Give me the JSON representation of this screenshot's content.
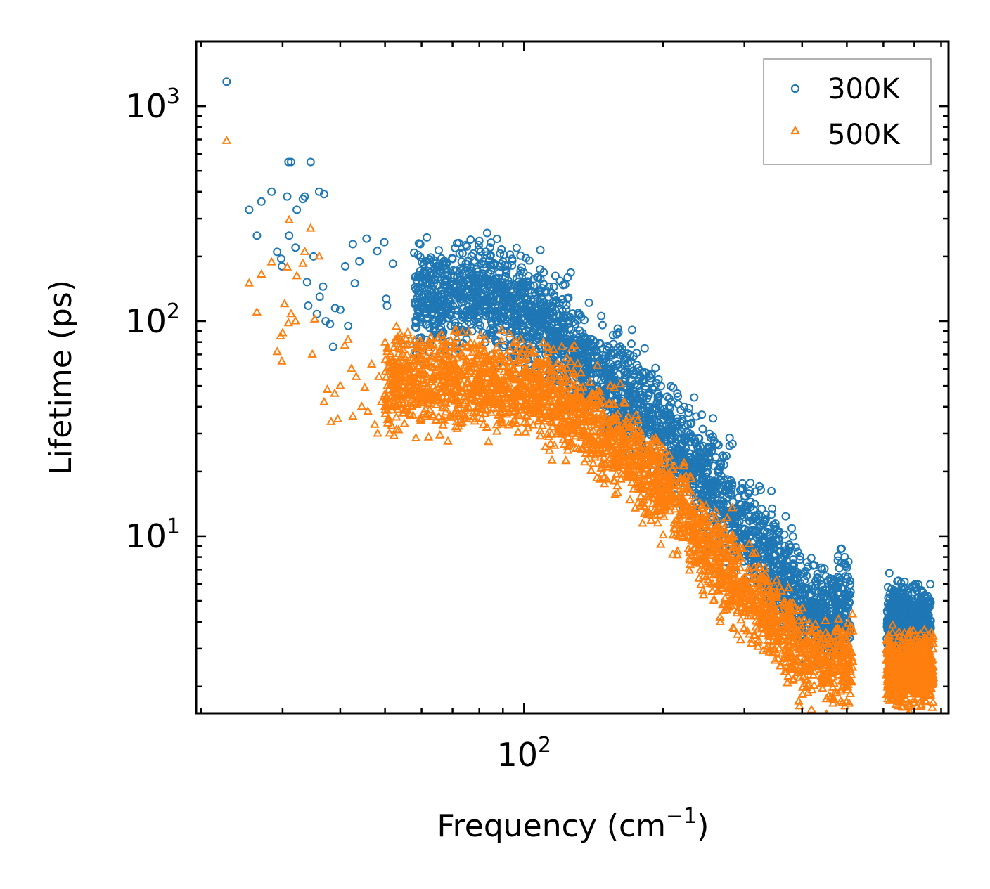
{
  "chart_data": {
    "type": "scatter",
    "scale": {
      "x": "log",
      "y": "log"
    },
    "xlim": [
      19.5,
      830
    ],
    "ylim": [
      1.5,
      2000
    ],
    "xlabel": {
      "main": "Frequency (cm",
      "sup": "−1",
      "end": ")"
    },
    "ylabel": "Lifetime (ps)",
    "x_ticks": [
      {
        "value": 100,
        "base": "10",
        "exp": "2"
      }
    ],
    "y_ticks": [
      {
        "value": 10,
        "base": "10",
        "exp": "1"
      },
      {
        "value": 100,
        "base": "10",
        "exp": "2"
      },
      {
        "value": 1000,
        "base": "10",
        "exp": "3"
      }
    ],
    "legend": {
      "position": "top-right"
    },
    "series": [
      {
        "name": "300K",
        "marker": "circle",
        "color": "#1f77b4",
        "points": [
          [
            22.7,
            1300
          ],
          [
            25.4,
            330
          ],
          [
            26.4,
            250
          ],
          [
            27.0,
            360
          ],
          [
            28.4,
            400
          ],
          [
            30.7,
            380
          ],
          [
            30.9,
            550
          ],
          [
            31.0,
            250
          ],
          [
            31.3,
            550
          ],
          [
            32.0,
            220
          ],
          [
            32.2,
            330
          ],
          [
            33.2,
            370
          ],
          [
            33.5,
            380
          ],
          [
            34.5,
            550
          ],
          [
            36.0,
            400
          ],
          [
            36.9,
            390
          ],
          [
            29.2,
            210
          ],
          [
            29.8,
            195
          ],
          [
            29.9,
            180
          ],
          [
            33.9,
            152
          ],
          [
            34.1,
            118
          ],
          [
            35.0,
            200
          ],
          [
            35.6,
            108
          ],
          [
            36.1,
            130
          ],
          [
            36.7,
            145
          ],
          [
            37.2,
            100
          ],
          [
            38.0,
            97
          ],
          [
            38.6,
            76
          ],
          [
            39.0,
            115
          ],
          [
            40.0,
            113
          ],
          [
            41.0,
            180
          ],
          [
            41.6,
            95
          ],
          [
            42.6,
            228
          ],
          [
            43.0,
            150
          ],
          [
            44.0,
            190
          ],
          [
            45.6,
            242
          ],
          [
            48.1,
            212
          ],
          [
            49.8,
            233
          ],
          [
            50.3,
            127
          ],
          [
            50.5,
            118
          ],
          [
            52.0,
            185
          ],
          [
            55.2,
            82
          ],
          [
            57.8,
            208
          ],
          [
            59.6,
            228
          ],
          [
            60.0,
            130
          ]
        ],
        "trend": [
          [
            50,
            120
          ],
          [
            80,
            135
          ],
          [
            100,
            110
          ],
          [
            120,
            85
          ],
          [
            150,
            52
          ],
          [
            180,
            40
          ],
          [
            220,
            25
          ],
          [
            260,
            16
          ],
          [
            300,
            11
          ],
          [
            350,
            7.5
          ],
          [
            400,
            5.0
          ],
          [
            450,
            4.3
          ],
          [
            500,
            4.9
          ],
          [
            650,
            4.0
          ],
          [
            750,
            4.2
          ]
        ],
        "trend_spread": 0.33,
        "trend_density": 2800,
        "trend_xmin": 58,
        "trend_xmax": 510,
        "clusters": [
          {
            "x": [
              610,
              760
            ],
            "y_center": 4.0,
            "spread": 0.22,
            "n": 700
          }
        ]
      },
      {
        "name": "500K",
        "marker": "triangle",
        "color": "#ff7f0e",
        "points": [
          [
            22.7,
            690
          ],
          [
            25.4,
            150
          ],
          [
            26.4,
            110
          ],
          [
            27.0,
            165
          ],
          [
            28.4,
            188
          ],
          [
            29.2,
            72
          ],
          [
            29.9,
            65
          ],
          [
            30.7,
            178
          ],
          [
            30.9,
            98
          ],
          [
            31.0,
            295
          ],
          [
            31.3,
            108
          ],
          [
            32.2,
            162
          ],
          [
            32.0,
            100
          ],
          [
            33.2,
            185
          ],
          [
            33.5,
            210
          ],
          [
            34.5,
            270
          ],
          [
            29.7,
            85
          ],
          [
            30.0,
            88
          ],
          [
            30.3,
            120
          ],
          [
            34.8,
            70
          ],
          [
            35.2,
            102
          ],
          [
            36.0,
            200
          ],
          [
            36.9,
            42
          ],
          [
            37.5,
            48
          ],
          [
            38.2,
            34
          ],
          [
            38.9,
            46
          ],
          [
            39.5,
            35
          ],
          [
            40.0,
            50
          ],
          [
            40.9,
            77
          ],
          [
            41.6,
            82
          ],
          [
            42.3,
            60
          ],
          [
            42.6,
            36
          ],
          [
            43.3,
            55
          ],
          [
            44.5,
            40
          ],
          [
            45.2,
            49
          ],
          [
            45.9,
            38
          ],
          [
            46.8,
            63
          ],
          [
            47.5,
            33
          ],
          [
            48.2,
            30
          ],
          [
            48.5,
            55
          ],
          [
            49.1,
            42
          ],
          [
            50.0,
            40
          ]
        ],
        "trend": [
          [
            50,
            52
          ],
          [
            70,
            52
          ],
          [
            90,
            50
          ],
          [
            110,
            48
          ],
          [
            130,
            38
          ],
          [
            160,
            27
          ],
          [
            190,
            19
          ],
          [
            220,
            13
          ],
          [
            260,
            8
          ],
          [
            300,
            5.5
          ],
          [
            350,
            4.0
          ],
          [
            400,
            2.8
          ],
          [
            450,
            2.5
          ],
          [
            500,
            2.6
          ],
          [
            650,
            2.4
          ],
          [
            750,
            2.5
          ]
        ],
        "trend_spread": 0.3,
        "trend_density": 2800,
        "trend_xmin": 50,
        "trend_xmax": 515,
        "clusters": [
          {
            "x": [
              610,
              770
            ],
            "y_center": 2.4,
            "spread": 0.22,
            "n": 700
          }
        ]
      }
    ]
  }
}
